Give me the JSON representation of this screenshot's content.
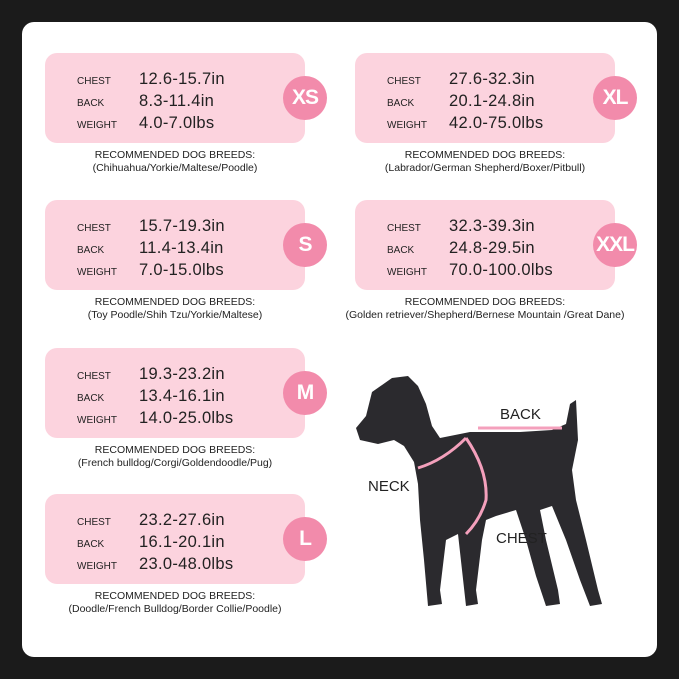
{
  "sizes": [
    {
      "size": "XS",
      "chest": "12.6-15.7in",
      "back": "8.3-11.4in",
      "weight": "4.0-7.0lbs",
      "breeds_title": "RECOMMENDED DOG BREEDS:",
      "breeds": "(Chihuahua/Yorkie/Maltese/Poodle)"
    },
    {
      "size": "S",
      "chest": "15.7-19.3in",
      "back": "11.4-13.4in",
      "weight": "7.0-15.0lbs",
      "breeds_title": "RECOMMENDED DOG BREEDS:",
      "breeds": "(Toy Poodle/Shih Tzu/Yorkie/Maltese)"
    },
    {
      "size": "M",
      "chest": "19.3-23.2in",
      "back": "13.4-16.1in",
      "weight": "14.0-25.0lbs",
      "breeds_title": "RECOMMENDED DOG BREEDS:",
      "breeds": "(French bulldog/Corgi/Goldendoodle/Pug)"
    },
    {
      "size": "L",
      "chest": "23.2-27.6in",
      "back": "16.1-20.1in",
      "weight": "23.0-48.0lbs",
      "breeds_title": "RECOMMENDED DOG BREEDS:",
      "breeds": "(Doodle/French Bulldog/Border Collie/Poodle)"
    },
    {
      "size": "XL",
      "chest": "27.6-32.3in",
      "back": "20.1-24.8in",
      "weight": "42.0-75.0lbs",
      "breeds_title": "RECOMMENDED DOG BREEDS:",
      "breeds": "(Labrador/German Shepherd/Boxer/Pitbull)"
    },
    {
      "size": "XXL",
      "chest": "32.3-39.3in",
      "back": "24.8-29.5in",
      "weight": "70.0-100.0lbs",
      "breeds_title": "RECOMMENDED DOG BREEDS:",
      "breeds": "(Golden retriever/Shepherd/Bernese Mountain /Great Dane)"
    }
  ],
  "labels": {
    "chest": "CHEST",
    "back": "BACK",
    "weight": "WEIGHT"
  },
  "diagram": {
    "back": "BACK",
    "neck": "NECK",
    "chest": "CHEST"
  },
  "colors": {
    "card": "#fcd3de",
    "badge": "#f28bab",
    "dog": "#2b2a2e",
    "strap": "#f4a0bc"
  }
}
